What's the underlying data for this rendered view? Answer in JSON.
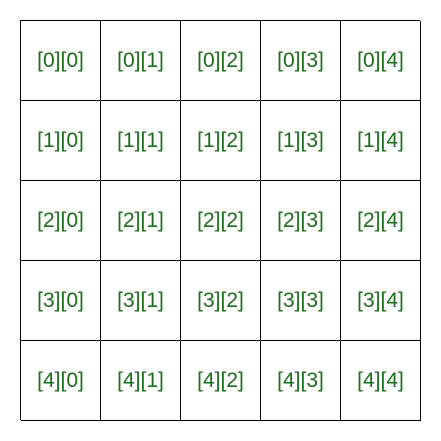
{
  "grid": {
    "rows": 5,
    "cols": 5,
    "text_color": "#1a6e1a",
    "border_color": "#000000",
    "cells": [
      [
        "[0][0]",
        "[0][1]",
        "[0][2]",
        "[0][3]",
        "[0][4]"
      ],
      [
        "[1][0]",
        "[1][1]",
        "[1][2]",
        "[1][3]",
        "[1][4]"
      ],
      [
        "[2][0]",
        "[2][1]",
        "[2][2]",
        "[2][3]",
        "[2][4]"
      ],
      [
        "[3][0]",
        "[3][1]",
        "[3][2]",
        "[3][3]",
        "[3][4]"
      ],
      [
        "[4][0]",
        "[4][1]",
        "[4][2]",
        "[4][3]",
        "[4][4]"
      ]
    ]
  }
}
